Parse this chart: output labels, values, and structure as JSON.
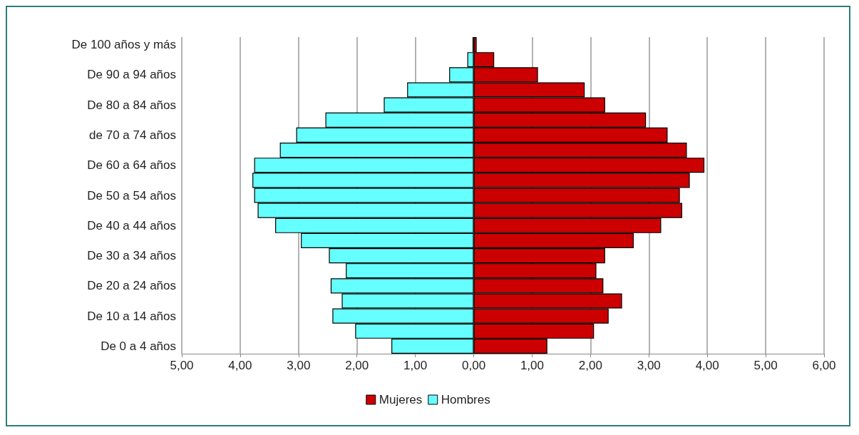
{
  "chart_data": {
    "type": "bar",
    "orientation": "horizontal",
    "stacked": true,
    "categories": [
      "De 100 años y más",
      null,
      "De 90 a 94 años",
      null,
      "De 80 a 84 años",
      null,
      "de 70 a 74 años",
      null,
      "De 60 a 64 años",
      null,
      "De 50 a 54 años",
      null,
      "De 40 a 44 años",
      null,
      "De 30 a 34 años",
      null,
      "De 20 a 24 años",
      null,
      "De 10 a 14 años",
      null,
      "De 0 a 4 años"
    ],
    "series": [
      {
        "name": "Mujeres",
        "color": "#cc0000",
        "values": [
          0.05,
          0.35,
          1.1,
          1.9,
          2.25,
          2.95,
          3.32,
          3.65,
          3.95,
          3.7,
          3.53,
          3.57,
          3.21,
          2.74,
          2.25,
          2.1,
          2.22,
          2.54,
          2.31,
          2.06,
          1.26
        ]
      },
      {
        "name": "Hombres",
        "color": "#66ffff",
        "values": [
          -0.02,
          -0.11,
          -0.42,
          -1.14,
          -1.54,
          -2.54,
          -3.04,
          -3.32,
          -3.76,
          -3.79,
          -3.76,
          -3.7,
          -3.4,
          -2.96,
          -2.48,
          -2.19,
          -2.45,
          -2.26,
          -2.42,
          -2.03,
          -1.41
        ]
      }
    ],
    "xlim": [
      -5,
      6
    ],
    "xticks": [
      {
        "value": -5,
        "label": "5,00"
      },
      {
        "value": -4,
        "label": "4,00"
      },
      {
        "value": -3,
        "label": "3,00"
      },
      {
        "value": -2,
        "label": "2,00"
      },
      {
        "value": -1,
        "label": "1,00"
      },
      {
        "value": 0,
        "label": "0,00"
      },
      {
        "value": 1,
        "label": "1,00"
      },
      {
        "value": 2,
        "label": "2,00"
      },
      {
        "value": 3,
        "label": "3,00"
      },
      {
        "value": 4,
        "label": "4,00"
      },
      {
        "value": 5,
        "label": "5,00"
      },
      {
        "value": 6,
        "label": "6,00"
      }
    ],
    "grid": "x",
    "legend": "bottom"
  }
}
